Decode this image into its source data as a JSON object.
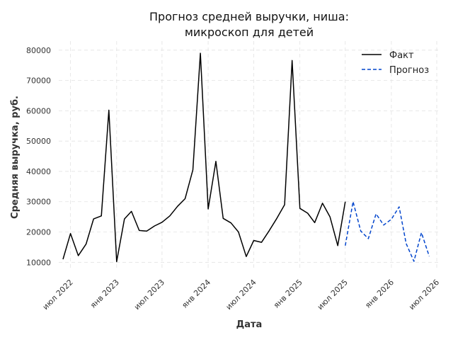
{
  "chart_data": {
    "type": "line",
    "title_line1": "Прогноз средней выручки, ниша:",
    "title_line2": "микроскоп для детей",
    "xlabel": "Дата",
    "ylabel": "Средняя выручка, руб.",
    "ylim": [
      7500,
      83000
    ],
    "xlim": [
      "2022-05-15",
      "2026-07-15"
    ],
    "x_ticks": [
      {
        "date": "2022-07-01",
        "label": "июл 2022"
      },
      {
        "date": "2023-01-01",
        "label": "янв 2023"
      },
      {
        "date": "2023-07-01",
        "label": "июл 2023"
      },
      {
        "date": "2024-01-01",
        "label": "янв 2024"
      },
      {
        "date": "2024-07-01",
        "label": "июл 2024"
      },
      {
        "date": "2025-01-01",
        "label": "янв 2025"
      },
      {
        "date": "2025-07-01",
        "label": "июл 2025"
      },
      {
        "date": "2026-01-01",
        "label": "янв 2026"
      },
      {
        "date": "2026-07-01",
        "label": "июл 2026"
      }
    ],
    "y_ticks": [
      {
        "value": 10000,
        "label": "10000"
      },
      {
        "value": 20000,
        "label": "20000"
      },
      {
        "value": 30000,
        "label": "30000"
      },
      {
        "value": 40000,
        "label": "40000"
      },
      {
        "value": 50000,
        "label": "50000"
      },
      {
        "value": 60000,
        "label": "60000"
      },
      {
        "value": 70000,
        "label": "70000"
      },
      {
        "value": 80000,
        "label": "80000"
      }
    ],
    "grid": true,
    "legend_position": "top-right",
    "series": [
      {
        "name": "Факт",
        "color": "#000000",
        "dash": "solid",
        "x": [
          "2022-06-01",
          "2022-07-01",
          "2022-08-01",
          "2022-09-01",
          "2022-10-01",
          "2022-11-01",
          "2022-12-01",
          "2023-01-01",
          "2023-02-01",
          "2023-03-01",
          "2023-04-01",
          "2023-05-01",
          "2023-06-01",
          "2023-07-01",
          "2023-08-01",
          "2023-09-01",
          "2023-10-01",
          "2023-11-01",
          "2023-12-01",
          "2024-01-01",
          "2024-02-01",
          "2024-03-01",
          "2024-04-01",
          "2024-05-01",
          "2024-06-01",
          "2024-07-01",
          "2024-08-01",
          "2024-09-01",
          "2024-10-01",
          "2024-11-01",
          "2024-12-01",
          "2025-01-01",
          "2025-02-01",
          "2025-03-01",
          "2025-04-01",
          "2025-05-01",
          "2025-06-01",
          "2025-07-01"
        ],
        "values": [
          11000,
          19500,
          12200,
          16000,
          24300,
          25300,
          60200,
          10200,
          24300,
          26800,
          20500,
          20300,
          22000,
          23200,
          25300,
          28500,
          31000,
          40500,
          79000,
          27600,
          43300,
          24500,
          23000,
          20000,
          11900,
          17200,
          16600,
          20500,
          24500,
          29000,
          76600,
          27800,
          26200,
          23100,
          29500,
          25000,
          15500,
          30000
        ]
      },
      {
        "name": "Прогноз",
        "color": "#0044cc",
        "dash": "dashed",
        "x": [
          "2025-07-01",
          "2025-08-01",
          "2025-09-01",
          "2025-10-01",
          "2025-11-01",
          "2025-12-01",
          "2026-01-01",
          "2026-02-01",
          "2026-03-01",
          "2026-04-01",
          "2026-05-01",
          "2026-06-01"
        ],
        "values": [
          15500,
          30000,
          20300,
          17800,
          26000,
          22300,
          24200,
          28300,
          16200,
          10300,
          19800,
          12000
        ]
      }
    ]
  }
}
